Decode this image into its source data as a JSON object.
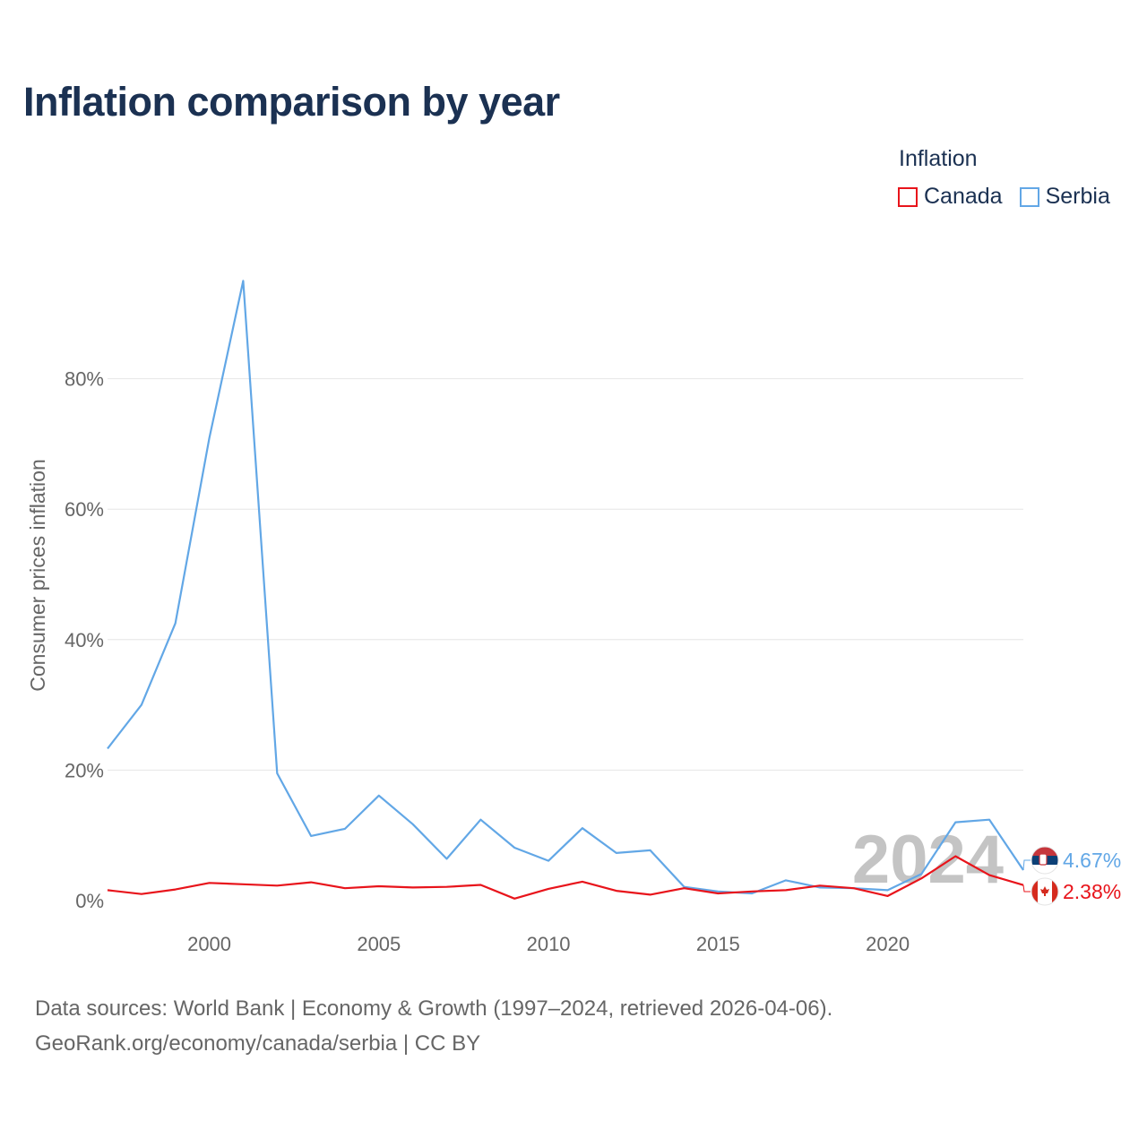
{
  "title": "Inflation comparison by year",
  "legend": {
    "title": "Inflation",
    "items": [
      {
        "name": "Canada",
        "color": "#e8141b"
      },
      {
        "name": "Serbia",
        "color": "#62a7e6"
      }
    ]
  },
  "footer": {
    "line1": "Data sources: World Bank | Economy & Growth (1997–2024, retrieved 2026-04-06).",
    "line2": "GeoRank.org/economy/canada/serbia | CC BY"
  },
  "chart_data": {
    "type": "line",
    "title": "Inflation comparison by year",
    "xlabel": "",
    "ylabel": "Consumer prices inflation",
    "xlim": [
      1997,
      2024
    ],
    "ylim": [
      0,
      100
    ],
    "grid": true,
    "legend_position": "top-right",
    "year_watermark": "2024",
    "x": [
      1997,
      1998,
      1999,
      2000,
      2001,
      2002,
      2003,
      2004,
      2005,
      2006,
      2007,
      2008,
      2009,
      2010,
      2011,
      2012,
      2013,
      2014,
      2015,
      2016,
      2017,
      2018,
      2019,
      2020,
      2021,
      2022,
      2023,
      2024
    ],
    "x_ticks": [
      2000,
      2005,
      2010,
      2015,
      2020
    ],
    "x_tick_labels": [
      "2000",
      "2005",
      "2010",
      "2015",
      "2020"
    ],
    "y_ticks": [
      0,
      20,
      40,
      60,
      80
    ],
    "y_tick_labels": [
      "0%",
      "20%",
      "40%",
      "60%",
      "80%"
    ],
    "series": [
      {
        "name": "Serbia",
        "color": "#62a7e6",
        "end_label": "4.67%",
        "flag": "serbia-flag",
        "values": [
          23.3,
          30.0,
          42.5,
          70.9,
          95.0,
          19.5,
          9.9,
          11.0,
          16.1,
          11.7,
          6.4,
          12.4,
          8.1,
          6.1,
          11.1,
          7.3,
          7.7,
          2.1,
          1.4,
          1.1,
          3.1,
          2.0,
          1.9,
          1.6,
          4.1,
          12.0,
          12.4,
          4.67
        ]
      },
      {
        "name": "Canada",
        "color": "#e8141b",
        "end_label": "2.38%",
        "flag": "canada-flag",
        "values": [
          1.6,
          1.0,
          1.7,
          2.7,
          2.5,
          2.3,
          2.8,
          1.9,
          2.2,
          2.0,
          2.1,
          2.4,
          0.3,
          1.8,
          2.9,
          1.5,
          0.9,
          1.9,
          1.1,
          1.4,
          1.6,
          2.3,
          1.9,
          0.7,
          3.4,
          6.8,
          3.9,
          2.38
        ]
      }
    ]
  }
}
